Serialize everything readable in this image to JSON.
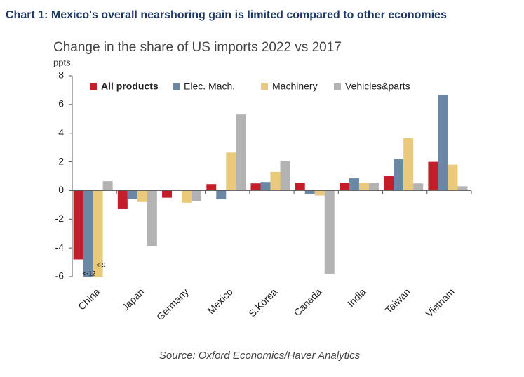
{
  "header": {
    "title": "Chart 1: Mexico's overall nearshoring gain is limited compared to other economies"
  },
  "chart_data": {
    "type": "bar",
    "title": "Change in the share of US imports 2022 vs 2017",
    "y_label": "ppts",
    "categories": [
      "China",
      "Japan",
      "Germany",
      "Mexico",
      "S.Korea",
      "Canada",
      "India",
      "Taiwan",
      "Vietnam"
    ],
    "series": [
      {
        "name": "All products",
        "color": "#c41e2a",
        "values": [
          -4.8,
          -1.25,
          -0.5,
          0.45,
          0.5,
          0.55,
          0.55,
          1.0,
          2.0
        ]
      },
      {
        "name": "Elec. Mach.",
        "color": "#6b87a6",
        "values": [
          -6,
          -0.6,
          0,
          -0.6,
          0.6,
          -0.25,
          0.85,
          2.2,
          6.65
        ]
      },
      {
        "name": "Machinery",
        "color": "#e9c97a",
        "values": [
          -6,
          -0.8,
          -0.85,
          2.65,
          1.3,
          -0.35,
          0.55,
          3.65,
          1.8
        ]
      },
      {
        "name": "Vehicles&parts",
        "color": "#b3b3b3",
        "values": [
          0.65,
          -3.85,
          -0.75,
          5.3,
          2.05,
          -5.8,
          0.55,
          0.5,
          0.3
        ]
      }
    ],
    "ylim": [
      -6,
      8
    ],
    "yticks": [
      -6,
      -4,
      -2,
      0,
      2,
      4,
      6,
      8
    ],
    "grid": false,
    "legend": "top",
    "annotations": [
      "<-12",
      "<-9"
    ],
    "source": "Source: Oxford Economics/Haver Analytics"
  }
}
